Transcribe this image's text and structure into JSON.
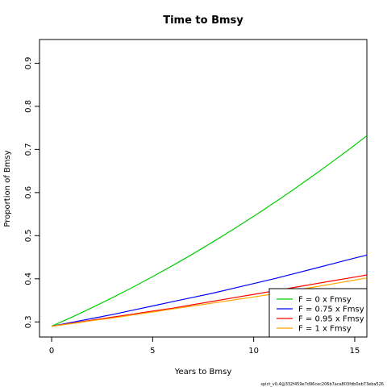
{
  "chart_data": {
    "type": "line",
    "title": "Time to Bmsy",
    "xlabel": "Years to Bmsy",
    "ylabel": "Proportion of Bmsy",
    "xlim": [
      -0.6,
      15.6
    ],
    "ylim": [
      0.265,
      0.955
    ],
    "x_ticks": [
      0,
      5,
      10,
      15
    ],
    "y_ticks": [
      0.3,
      0.4,
      0.5,
      0.6,
      0.7,
      0.8,
      0.9
    ],
    "grid": false,
    "legend_position": "bottom-right",
    "series": [
      {
        "name": "F = 0 x Fmsy",
        "color": "#00cd00",
        "x": [
          0,
          1,
          2,
          3,
          4,
          5,
          6,
          7,
          8,
          9,
          10,
          11,
          12,
          13,
          14,
          15,
          15.6
        ],
        "values": [
          0.29,
          0.311,
          0.333,
          0.356,
          0.38,
          0.405,
          0.431,
          0.458,
          0.486,
          0.515,
          0.545,
          0.576,
          0.608,
          0.641,
          0.675,
          0.71,
          0.732
        ]
      },
      {
        "name": "F = 0.75 x Fmsy",
        "color": "#0000ff",
        "x": [
          0,
          1,
          2,
          3,
          4,
          5,
          6,
          7,
          8,
          9,
          10,
          11,
          12,
          13,
          14,
          15,
          15.6
        ],
        "values": [
          0.29,
          0.299,
          0.308,
          0.317,
          0.327,
          0.337,
          0.347,
          0.357,
          0.367,
          0.378,
          0.389,
          0.4,
          0.412,
          0.424,
          0.436,
          0.448,
          0.455
        ]
      },
      {
        "name": "F = 0.95 x Fmsy",
        "color": "#ff0000",
        "x": [
          0,
          1,
          2,
          3,
          4,
          5,
          6,
          7,
          8,
          9,
          10,
          11,
          12,
          13,
          14,
          15,
          15.6
        ],
        "values": [
          0.29,
          0.297,
          0.304,
          0.311,
          0.318,
          0.325,
          0.332,
          0.34,
          0.348,
          0.356,
          0.364,
          0.372,
          0.38,
          0.388,
          0.396,
          0.404,
          0.409
        ]
      },
      {
        "name": "F = 1 x Fmsy",
        "color": "#ffa500",
        "x": [
          0,
          1,
          2,
          3,
          4,
          5,
          6,
          7,
          8,
          9,
          10,
          11,
          12,
          13,
          14,
          15,
          15.6
        ],
        "values": [
          0.29,
          0.296,
          0.303,
          0.309,
          0.316,
          0.323,
          0.33,
          0.337,
          0.344,
          0.351,
          0.358,
          0.365,
          0.373,
          0.381,
          0.389,
          0.397,
          0.402
        ]
      }
    ]
  },
  "footnote": "spict_v0.4@332f459e7d96cec206b7aca803fdb0eb73eba526"
}
